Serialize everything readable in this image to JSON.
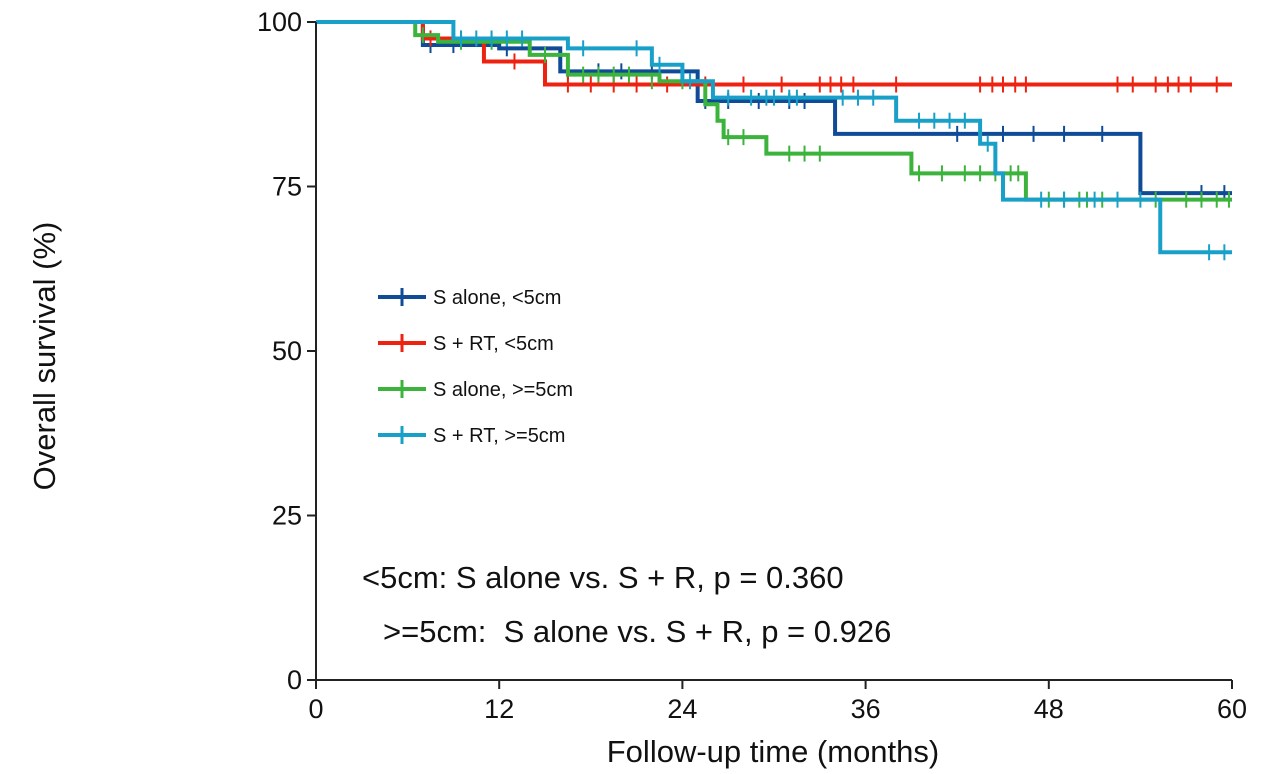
{
  "chart_data": {
    "type": "line",
    "subtype": "kaplan-meier",
    "xlabel": "Follow-up time (months)",
    "ylabel": "Overall survival (%)",
    "xlim": [
      0,
      60
    ],
    "ylim": [
      0,
      100
    ],
    "xticks": [
      0,
      12,
      24,
      36,
      48,
      60
    ],
    "yticks": [
      0,
      25,
      50,
      75,
      100
    ],
    "grid": false,
    "legend": {
      "placement": "center-left"
    },
    "series": [
      {
        "name": "S alone, <5cm",
        "color": "#0f4b96",
        "steps": [
          [
            0,
            100
          ],
          [
            7,
            96.5
          ],
          [
            12,
            96
          ],
          [
            16,
            92.5
          ],
          [
            25,
            88
          ],
          [
            34,
            83
          ],
          [
            54,
            74
          ],
          [
            60,
            74
          ]
        ],
        "censors": [
          [
            7.5,
            96.5
          ],
          [
            9,
            96.5
          ],
          [
            12.5,
            96
          ],
          [
            14,
            96
          ],
          [
            16.5,
            92.5
          ],
          [
            18.5,
            92.5
          ],
          [
            20,
            92.5
          ],
          [
            22,
            92.5
          ],
          [
            24,
            92.5
          ],
          [
            25.5,
            88
          ],
          [
            27,
            88
          ],
          [
            29,
            88
          ],
          [
            31,
            88
          ],
          [
            32,
            88
          ],
          [
            42,
            83
          ],
          [
            45,
            83
          ],
          [
            47,
            83
          ],
          [
            49,
            83
          ],
          [
            51.5,
            83
          ],
          [
            58,
            74
          ],
          [
            59.5,
            74
          ]
        ]
      },
      {
        "name": "S + RT, <5cm",
        "color": "#ee2211",
        "steps": [
          [
            0,
            100
          ],
          [
            7,
            97.5
          ],
          [
            11,
            94
          ],
          [
            15,
            90.5
          ],
          [
            60,
            90.5
          ]
        ],
        "censors": [
          [
            7.5,
            97.5
          ],
          [
            9.5,
            97.5
          ],
          [
            13,
            94
          ],
          [
            16.5,
            90.5
          ],
          [
            18,
            90.5
          ],
          [
            19.5,
            90.5
          ],
          [
            21,
            90.5
          ],
          [
            23,
            90.5
          ],
          [
            25.5,
            90.5
          ],
          [
            28,
            90.5
          ],
          [
            30.5,
            90.5
          ],
          [
            33,
            90.5
          ],
          [
            33.7,
            90.5
          ],
          [
            34.4,
            90.5
          ],
          [
            35.2,
            90.5
          ],
          [
            38,
            90.5
          ],
          [
            43.5,
            90.5
          ],
          [
            44.3,
            90.5
          ],
          [
            45,
            90.5
          ],
          [
            45.8,
            90.5
          ],
          [
            46.5,
            90.5
          ],
          [
            52.5,
            90.5
          ],
          [
            53.5,
            90.5
          ],
          [
            55,
            90.5
          ],
          [
            55.8,
            90.5
          ],
          [
            56.5,
            90.5
          ],
          [
            57.3,
            90.5
          ],
          [
            59,
            90.5
          ]
        ]
      },
      {
        "name": "S alone, >=5cm",
        "color": "#3cb33c",
        "steps": [
          [
            0,
            100
          ],
          [
            6.5,
            98
          ],
          [
            8,
            97
          ],
          [
            14,
            95
          ],
          [
            16.5,
            92
          ],
          [
            21,
            92
          ],
          [
            22.5,
            91
          ],
          [
            24.5,
            91
          ],
          [
            25.5,
            87.5
          ],
          [
            26.3,
            85
          ],
          [
            26.7,
            82.5
          ],
          [
            29.5,
            80
          ],
          [
            39,
            77
          ],
          [
            46.5,
            73
          ],
          [
            60,
            73
          ]
        ],
        "censors": [
          [
            7,
            98
          ],
          [
            9.5,
            97
          ],
          [
            11.5,
            97
          ],
          [
            15,
            95
          ],
          [
            17.5,
            92
          ],
          [
            18.5,
            92
          ],
          [
            19.5,
            92
          ],
          [
            20.5,
            92
          ],
          [
            22,
            91
          ],
          [
            24,
            91
          ],
          [
            27,
            82.5
          ],
          [
            28,
            82.5
          ],
          [
            31,
            80
          ],
          [
            32,
            80
          ],
          [
            33,
            80
          ],
          [
            39.5,
            77
          ],
          [
            41,
            77
          ],
          [
            42.5,
            77
          ],
          [
            43.5,
            77
          ],
          [
            44.5,
            77
          ],
          [
            45.5,
            77
          ],
          [
            46,
            77
          ],
          [
            48,
            73
          ],
          [
            49,
            73
          ],
          [
            50,
            73
          ],
          [
            50.5,
            73
          ],
          [
            51.5,
            73
          ],
          [
            55,
            73
          ],
          [
            57,
            73
          ],
          [
            58,
            73
          ],
          [
            59,
            73
          ],
          [
            59.8,
            73
          ]
        ]
      },
      {
        "name": "S + RT, >=5cm",
        "color": "#18a0c8",
        "steps": [
          [
            0,
            100
          ],
          [
            9,
            97.5
          ],
          [
            16.5,
            96
          ],
          [
            22,
            93.5
          ],
          [
            24,
            91
          ],
          [
            26,
            88.5
          ],
          [
            38,
            85
          ],
          [
            43.5,
            81.5
          ],
          [
            44.5,
            77
          ],
          [
            45,
            73
          ],
          [
            55,
            73
          ],
          [
            55.3,
            65
          ],
          [
            60,
            65
          ]
        ],
        "censors": [
          [
            9.5,
            97.5
          ],
          [
            10.5,
            97.5
          ],
          [
            11.5,
            97.5
          ],
          [
            12.5,
            97.5
          ],
          [
            13.5,
            97.5
          ],
          [
            17.5,
            96
          ],
          [
            21,
            96
          ],
          [
            22.5,
            93.5
          ],
          [
            24.5,
            91
          ],
          [
            27,
            88.5
          ],
          [
            28.5,
            88.5
          ],
          [
            29.5,
            88.5
          ],
          [
            30,
            88.5
          ],
          [
            31,
            88.5
          ],
          [
            31.5,
            88.5
          ],
          [
            34.5,
            88.5
          ],
          [
            35.5,
            88.5
          ],
          [
            36.5,
            88.5
          ],
          [
            39.5,
            85
          ],
          [
            40.5,
            85
          ],
          [
            41.5,
            85
          ],
          [
            42.5,
            85
          ],
          [
            44,
            81.5
          ],
          [
            47.5,
            73
          ],
          [
            49,
            73
          ],
          [
            51,
            73
          ],
          [
            52.5,
            73
          ],
          [
            54,
            73
          ],
          [
            58.5,
            65
          ],
          [
            59.5,
            65
          ]
        ]
      }
    ],
    "annotations": [
      "<5cm: S alone vs. S + R, p = 0.360",
      ">=5cm:  S alone vs. S + R, p = 0.926"
    ]
  }
}
